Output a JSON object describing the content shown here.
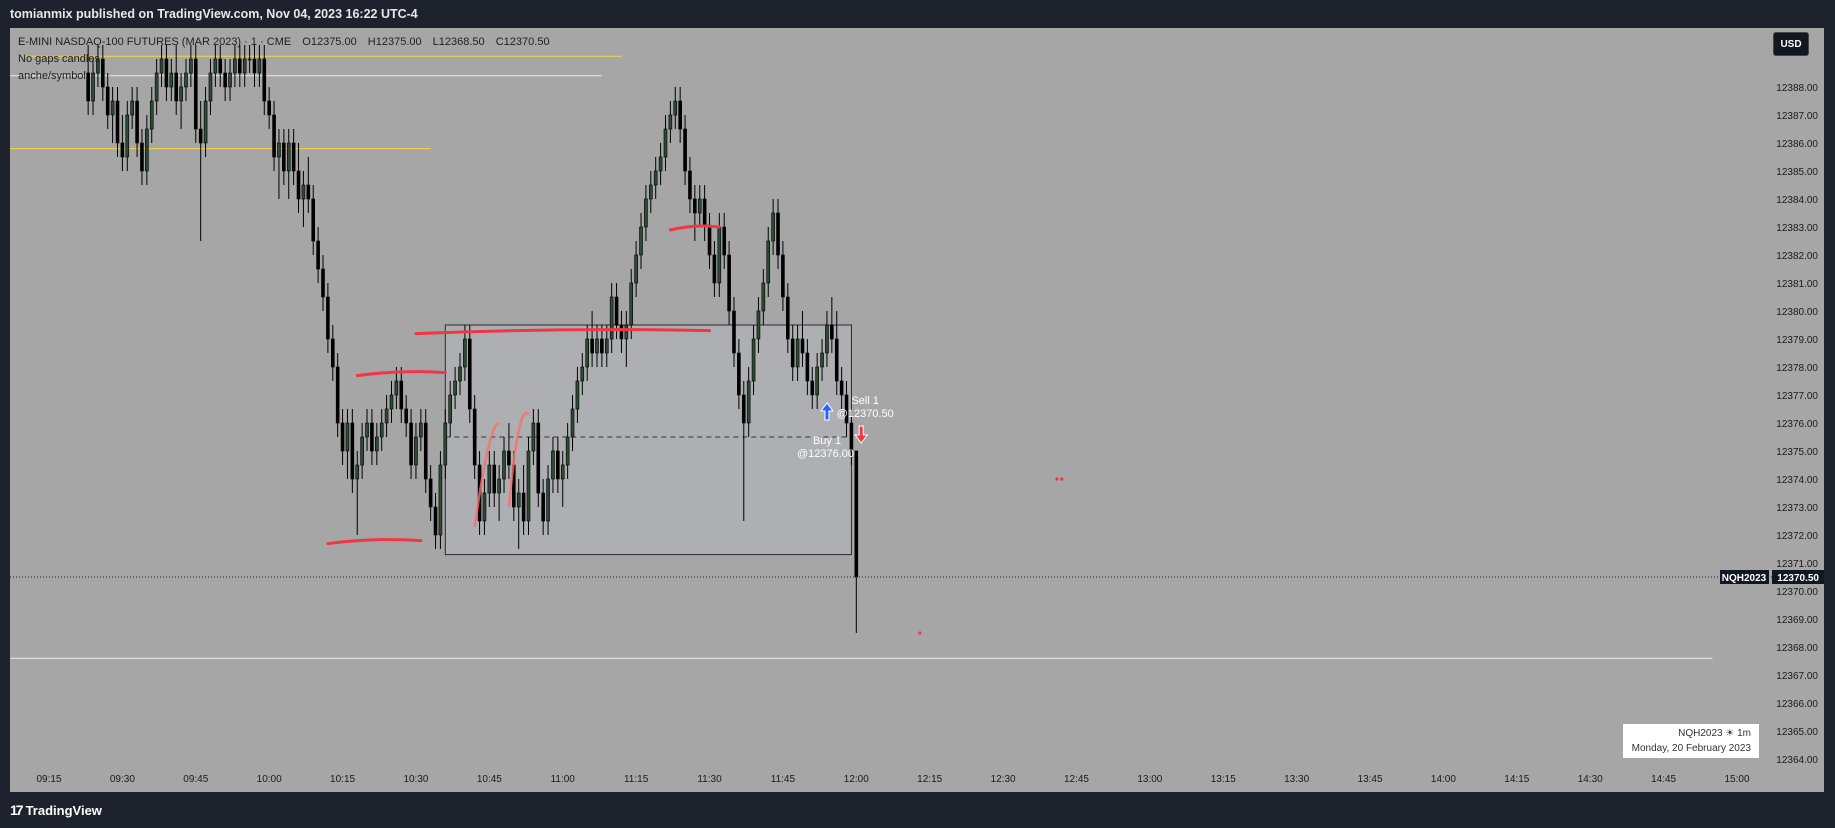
{
  "header": {
    "title": "tomianmix published on TradingView.com, Nov 04, 2023 16:22 UTC-4"
  },
  "legend": {
    "symbol": "E-MINI NASDAQ-100 FUTURES (MAR 2023) · 1 · CME",
    "open": "O12375.00",
    "high": "H12375.00",
    "low": "L12368.50",
    "close": "C12370.50",
    "indicator1": "No gaps candles",
    "indicator2": "anche/symbol"
  },
  "currency": "USD",
  "price_axis": {
    "labels": [
      "12388.00",
      "12387.00",
      "12386.00",
      "12385.00",
      "12384.00",
      "12383.00",
      "12382.00",
      "12381.00",
      "12380.00",
      "12379.00",
      "12378.00",
      "12377.00",
      "12376.00",
      "12375.00",
      "12374.00",
      "12373.00",
      "12372.00",
      "12371.00",
      "12370.00",
      "12369.00",
      "12368.00",
      "12367.00",
      "12366.00",
      "12365.00",
      "12364.00"
    ]
  },
  "time_axis": {
    "labels": [
      "09:15",
      "09:30",
      "09:45",
      "10:00",
      "10:15",
      "10:30",
      "10:45",
      "11:00",
      "11:15",
      "11:30",
      "11:45",
      "12:00",
      "12:15",
      "12:30",
      "12:45",
      "13:00",
      "13:15",
      "13:30",
      "13:45",
      "14:00",
      "14:15",
      "14:30",
      "14:45",
      "15:00"
    ]
  },
  "last_price": {
    "symbol_tag": "NQH2023",
    "value": "12370.50"
  },
  "trade_labels": {
    "buy_line1": "Buy 1",
    "buy_line2": "@12376.00",
    "sell_line1": "Sell 1",
    "sell_line2": "@12370.50"
  },
  "info_box": {
    "line1": "NQH2023 ☀ 1m",
    "line2": "Monday, 20 February 2023"
  },
  "footer": {
    "logo_text": "TradingView"
  },
  "colors": {
    "bg": "#a6a6a6",
    "frame": "#1e222d",
    "bull": "#2e4a35",
    "bear": "#000000",
    "red_line": "#f23645",
    "yellow_line": "#f5d742",
    "buy_arrow": "#2962ff",
    "sell_arrow": "#f23645"
  },
  "chart_data": {
    "type": "candlestick",
    "symbol": "NQH2023",
    "interval": "1m",
    "ylim": [
      12363.5,
      12389.5
    ],
    "x_range": [
      "09:10",
      "15:05"
    ],
    "candles": [
      [
        "09:23",
        12388.5,
        12389.5,
        12387.0,
        12387.5
      ],
      [
        "09:24",
        12387.5,
        12389.0,
        12387.0,
        12388.5
      ],
      [
        "09:25",
        12388.5,
        12389.5,
        12388.0,
        12389.0
      ],
      [
        "09:26",
        12389.0,
        12389.5,
        12387.5,
        12388.0
      ],
      [
        "09:27",
        12388.0,
        12388.5,
        12386.5,
        12387.0
      ],
      [
        "09:28",
        12387.0,
        12388.0,
        12386.0,
        12387.5
      ],
      [
        "09:29",
        12387.5,
        12388.0,
        12385.5,
        12386.0
      ],
      [
        "09:30",
        12386.0,
        12387.0,
        12385.0,
        12385.5
      ],
      [
        "09:31",
        12385.5,
        12387.5,
        12385.0,
        12387.0
      ],
      [
        "09:32",
        12387.0,
        12388.0,
        12386.5,
        12387.5
      ],
      [
        "09:33",
        12387.5,
        12388.0,
        12385.5,
        12386.0
      ],
      [
        "09:34",
        12386.0,
        12386.5,
        12384.5,
        12385.0
      ],
      [
        "09:35",
        12385.0,
        12387.0,
        12384.5,
        12386.5
      ],
      [
        "09:36",
        12386.5,
        12388.0,
        12386.0,
        12387.5
      ],
      [
        "09:37",
        12387.5,
        12389.0,
        12387.0,
        12388.5
      ],
      [
        "09:38",
        12388.5,
        12389.5,
        12388.0,
        12389.0
      ],
      [
        "09:39",
        12389.0,
        12389.5,
        12387.5,
        12388.0
      ],
      [
        "09:40",
        12388.0,
        12389.0,
        12387.5,
        12388.5
      ],
      [
        "09:41",
        12388.5,
        12389.5,
        12387.0,
        12387.5
      ],
      [
        "09:42",
        12387.5,
        12388.5,
        12386.5,
        12388.0
      ],
      [
        "09:43",
        12388.0,
        12389.0,
        12387.5,
        12388.5
      ],
      [
        "09:44",
        12388.5,
        12389.5,
        12388.0,
        12389.0
      ],
      [
        "09:45",
        12389.0,
        12389.5,
        12386.0,
        12386.5
      ],
      [
        "09:46",
        12386.5,
        12387.5,
        12382.5,
        12386.0
      ],
      [
        "09:47",
        12386.0,
        12388.0,
        12385.5,
        12387.5
      ],
      [
        "09:48",
        12387.5,
        12389.0,
        12387.0,
        12388.5
      ],
      [
        "09:49",
        12388.5,
        12389.5,
        12388.0,
        12389.0
      ],
      [
        "09:50",
        12389.0,
        12389.5,
        12388.0,
        12388.5
      ],
      [
        "09:51",
        12388.5,
        12389.0,
        12387.5,
        12388.0
      ],
      [
        "09:52",
        12388.0,
        12389.0,
        12387.5,
        12388.5
      ],
      [
        "09:53",
        12388.5,
        12389.5,
        12388.0,
        12389.0
      ],
      [
        "09:54",
        12389.0,
        12389.5,
        12388.0,
        12388.5
      ],
      [
        "09:55",
        12388.5,
        12389.5,
        12388.0,
        12389.0
      ],
      [
        "09:56",
        12389.0,
        12389.5,
        12388.5,
        12389.0
      ],
      [
        "09:57",
        12389.0,
        12389.5,
        12388.0,
        12388.5
      ],
      [
        "09:58",
        12388.5,
        12389.5,
        12388.0,
        12389.0
      ],
      [
        "09:59",
        12389.0,
        12389.5,
        12387.0,
        12387.5
      ],
      [
        "10:00",
        12387.5,
        12388.0,
        12386.5,
        12387.0
      ],
      [
        "10:01",
        12387.0,
        12387.5,
        12385.0,
        12385.5
      ],
      [
        "10:02",
        12385.5,
        12386.5,
        12384.0,
        12386.0
      ],
      [
        "10:03",
        12386.0,
        12386.5,
        12384.5,
        12385.0
      ],
      [
        "10:04",
        12385.0,
        12386.5,
        12384.0,
        12386.0
      ],
      [
        "10:05",
        12386.0,
        12386.5,
        12384.5,
        12385.0
      ],
      [
        "10:06",
        12385.0,
        12386.0,
        12383.5,
        12384.0
      ],
      [
        "10:07",
        12384.0,
        12385.0,
        12383.0,
        12384.5
      ],
      [
        "10:08",
        12384.5,
        12385.5,
        12383.5,
        12384.0
      ],
      [
        "10:09",
        12384.0,
        12384.5,
        12382.0,
        12382.5
      ],
      [
        "10:10",
        12382.5,
        12383.0,
        12381.0,
        12381.5
      ],
      [
        "10:11",
        12381.5,
        12382.0,
        12380.0,
        12380.5
      ],
      [
        "10:12",
        12380.5,
        12381.0,
        12378.5,
        12379.0
      ],
      [
        "10:13",
        12379.0,
        12379.5,
        12377.5,
        12378.0
      ],
      [
        "10:14",
        12378.0,
        12378.5,
        12375.5,
        12376.0
      ],
      [
        "10:15",
        12376.0,
        12376.5,
        12374.5,
        12375.0
      ],
      [
        "10:16",
        12375.0,
        12376.5,
        12374.0,
        12376.0
      ],
      [
        "10:17",
        12376.0,
        12376.5,
        12373.5,
        12374.0
      ],
      [
        "10:18",
        12374.0,
        12375.0,
        12372.0,
        12374.5
      ],
      [
        "10:19",
        12374.5,
        12376.0,
        12374.0,
        12375.5
      ],
      [
        "10:20",
        12375.5,
        12376.5,
        12375.0,
        12376.0
      ],
      [
        "10:21",
        12376.0,
        12376.5,
        12374.5,
        12375.0
      ],
      [
        "10:22",
        12375.0,
        12376.0,
        12374.5,
        12375.5
      ],
      [
        "10:23",
        12375.5,
        12376.5,
        12375.0,
        12376.0
      ],
      [
        "10:24",
        12376.0,
        12377.0,
        12375.5,
        12376.5
      ],
      [
        "10:25",
        12376.5,
        12377.5,
        12376.0,
        12377.0
      ],
      [
        "10:26",
        12377.0,
        12378.0,
        12376.5,
        12377.5
      ],
      [
        "10:27",
        12377.5,
        12378.0,
        12376.0,
        12376.5
      ],
      [
        "10:28",
        12376.5,
        12377.0,
        12375.5,
        12376.0
      ],
      [
        "10:29",
        12376.0,
        12376.5,
        12374.0,
        12374.5
      ],
      [
        "10:30",
        12374.5,
        12376.0,
        12374.0,
        12375.5
      ],
      [
        "10:31",
        12375.5,
        12376.5,
        12375.0,
        12376.0
      ],
      [
        "10:32",
        12376.0,
        12376.5,
        12373.5,
        12374.0
      ],
      [
        "10:33",
        12374.0,
        12374.5,
        12372.5,
        12373.0
      ],
      [
        "10:34",
        12373.0,
        12373.5,
        12371.5,
        12372.0
      ],
      [
        "10:35",
        12372.0,
        12375.0,
        12371.5,
        12374.5
      ],
      [
        "10:36",
        12374.5,
        12376.5,
        12374.0,
        12376.0
      ],
      [
        "10:37",
        12376.0,
        12377.5,
        12375.5,
        12377.0
      ],
      [
        "10:38",
        12377.0,
        12378.0,
        12376.5,
        12377.5
      ],
      [
        "10:39",
        12377.5,
        12378.5,
        12377.0,
        12378.0
      ],
      [
        "10:40",
        12378.0,
        12379.5,
        12377.5,
        12379.0
      ],
      [
        "10:41",
        12379.0,
        12379.5,
        12376.0,
        12376.5
      ],
      [
        "10:42",
        12376.5,
        12377.0,
        12374.0,
        12374.5
      ],
      [
        "10:43",
        12374.5,
        12375.0,
        12372.0,
        12372.5
      ],
      [
        "10:44",
        12372.5,
        12374.0,
        12372.0,
        12373.5
      ],
      [
        "10:45",
        12373.5,
        12375.0,
        12373.0,
        12374.5
      ],
      [
        "10:46",
        12374.5,
        12375.0,
        12373.0,
        12373.5
      ],
      [
        "10:47",
        12373.5,
        12374.5,
        12372.5,
        12374.0
      ],
      [
        "10:48",
        12374.0,
        12375.5,
        12373.5,
        12375.0
      ],
      [
        "10:49",
        12375.0,
        12376.0,
        12374.0,
        12374.5
      ],
      [
        "10:50",
        12374.5,
        12375.0,
        12372.5,
        12373.0
      ],
      [
        "10:51",
        12373.0,
        12374.0,
        12371.5,
        12373.5
      ],
      [
        "10:52",
        12373.5,
        12374.5,
        12372.0,
        12372.5
      ],
      [
        "10:53",
        12372.5,
        12375.5,
        12372.0,
        12375.0
      ],
      [
        "10:54",
        12375.0,
        12376.5,
        12374.5,
        12376.0
      ],
      [
        "10:55",
        12376.0,
        12376.5,
        12373.0,
        12373.5
      ],
      [
        "10:56",
        12373.5,
        12374.0,
        12372.0,
        12372.5
      ],
      [
        "10:57",
        12372.5,
        12374.5,
        12372.0,
        12374.0
      ],
      [
        "10:58",
        12374.0,
        12375.5,
        12373.5,
        12375.0
      ],
      [
        "10:59",
        12375.0,
        12375.5,
        12373.5,
        12374.0
      ],
      [
        "11:00",
        12374.0,
        12375.0,
        12373.0,
        12374.5
      ],
      [
        "11:01",
        12374.5,
        12376.0,
        12374.0,
        12375.5
      ],
      [
        "11:02",
        12375.5,
        12377.0,
        12375.0,
        12376.5
      ],
      [
        "11:03",
        12376.5,
        12378.0,
        12376.0,
        12377.5
      ],
      [
        "11:04",
        12377.5,
        12378.5,
        12377.0,
        12378.0
      ],
      [
        "11:05",
        12378.0,
        12379.5,
        12377.5,
        12379.0
      ],
      [
        "11:06",
        12379.0,
        12380.0,
        12378.0,
        12378.5
      ],
      [
        "11:07",
        12378.5,
        12379.5,
        12378.0,
        12379.0
      ],
      [
        "11:08",
        12379.0,
        12379.5,
        12378.0,
        12378.5
      ],
      [
        "11:09",
        12378.5,
        12379.5,
        12378.0,
        12379.0
      ],
      [
        "11:10",
        12379.0,
        12381.0,
        12378.5,
        12380.5
      ],
      [
        "11:11",
        12380.5,
        12381.0,
        12379.0,
        12379.5
      ],
      [
        "11:12",
        12379.5,
        12380.0,
        12378.5,
        12379.0
      ],
      [
        "11:13",
        12379.0,
        12380.0,
        12378.0,
        12379.5
      ],
      [
        "11:14",
        12379.5,
        12381.5,
        12379.0,
        12381.0
      ],
      [
        "11:15",
        12381.0,
        12382.5,
        12380.5,
        12382.0
      ],
      [
        "11:16",
        12382.0,
        12383.5,
        12381.5,
        12383.0
      ],
      [
        "11:17",
        12383.0,
        12384.5,
        12382.5,
        12384.0
      ],
      [
        "11:18",
        12384.0,
        12385.0,
        12383.5,
        12384.5
      ],
      [
        "11:19",
        12384.5,
        12385.5,
        12384.0,
        12385.0
      ],
      [
        "11:20",
        12385.0,
        12386.0,
        12384.5,
        12385.5
      ],
      [
        "11:21",
        12385.5,
        12387.0,
        12385.0,
        12386.5
      ],
      [
        "11:22",
        12386.5,
        12387.5,
        12386.0,
        12387.0
      ],
      [
        "11:23",
        12387.0,
        12388.0,
        12386.5,
        12387.5
      ],
      [
        "11:24",
        12387.5,
        12388.0,
        12386.0,
        12386.5
      ],
      [
        "11:25",
        12386.5,
        12387.0,
        12384.5,
        12385.0
      ],
      [
        "11:26",
        12385.0,
        12385.5,
        12383.5,
        12384.0
      ],
      [
        "11:27",
        12384.0,
        12384.5,
        12382.5,
        12383.5
      ],
      [
        "11:28",
        12383.5,
        12384.5,
        12383.0,
        12384.0
      ],
      [
        "11:29",
        12384.0,
        12384.5,
        12382.5,
        12383.0
      ],
      [
        "11:30",
        12383.0,
        12383.5,
        12381.5,
        12382.0
      ],
      [
        "11:31",
        12382.0,
        12382.5,
        12380.5,
        12381.0
      ],
      [
        "11:32",
        12381.0,
        12383.5,
        12380.5,
        12383.0
      ],
      [
        "11:33",
        12383.0,
        12383.5,
        12381.5,
        12382.0
      ],
      [
        "11:34",
        12382.0,
        12382.5,
        12379.5,
        12380.0
      ],
      [
        "11:35",
        12380.0,
        12380.5,
        12378.0,
        12378.5
      ],
      [
        "11:36",
        12378.5,
        12379.0,
        12376.5,
        12377.0
      ],
      [
        "11:37",
        12377.0,
        12377.5,
        12372.5,
        12376.0
      ],
      [
        "11:38",
        12376.0,
        12378.0,
        12375.5,
        12377.5
      ],
      [
        "11:39",
        12377.5,
        12379.5,
        12377.0,
        12379.0
      ],
      [
        "11:40",
        12379.0,
        12380.5,
        12378.5,
        12380.0
      ],
      [
        "11:41",
        12380.0,
        12381.5,
        12379.5,
        12381.0
      ],
      [
        "11:42",
        12381.0,
        12383.0,
        12380.5,
        12382.5
      ],
      [
        "11:43",
        12382.5,
        12384.0,
        12382.0,
        12383.5
      ],
      [
        "11:44",
        12383.5,
        12384.0,
        12381.5,
        12382.0
      ],
      [
        "11:45",
        12382.0,
        12382.5,
        12380.0,
        12380.5
      ],
      [
        "11:46",
        12380.5,
        12381.0,
        12378.5,
        12379.0
      ],
      [
        "11:47",
        12379.0,
        12379.5,
        12377.5,
        12378.0
      ],
      [
        "11:48",
        12378.0,
        12379.5,
        12377.5,
        12379.0
      ],
      [
        "11:49",
        12379.0,
        12380.0,
        12378.0,
        12378.5
      ],
      [
        "11:50",
        12378.5,
        12379.0,
        12377.0,
        12377.5
      ],
      [
        "11:51",
        12377.5,
        12378.0,
        12376.5,
        12377.0
      ],
      [
        "11:52",
        12377.0,
        12378.5,
        12376.5,
        12378.0
      ],
      [
        "11:53",
        12378.0,
        12379.0,
        12377.5,
        12378.5
      ],
      [
        "11:54",
        12378.5,
        12380.0,
        12378.0,
        12379.5
      ],
      [
        "11:55",
        12379.5,
        12380.5,
        12378.5,
        12379.0
      ],
      [
        "11:56",
        12379.0,
        12380.0,
        12377.0,
        12377.5
      ],
      [
        "11:57",
        12377.5,
        12378.0,
        12376.5,
        12377.0
      ],
      [
        "11:58",
        12377.0,
        12377.5,
        12375.5,
        12376.0
      ],
      [
        "11:59",
        12376.0,
        12376.5,
        12374.5,
        12375.0
      ],
      [
        "12:00",
        12375.0,
        12375.0,
        12368.5,
        12370.5
      ]
    ],
    "drawings": {
      "rectangle": {
        "time_start": "10:36",
        "time_end": "11:59",
        "price_top": 12379.5,
        "price_bottom": 12371.3,
        "mid_price": 12375.5
      },
      "yellow_lines": [
        {
          "price": 12389.1,
          "time_start": "09:10",
          "time_end": "11:12"
        },
        {
          "price": 12385.8,
          "time_end": "10:33"
        }
      ],
      "white_lines": [
        {
          "price": 12388.4,
          "time_end": "11:08"
        },
        {
          "price": 12367.6,
          "time_end": "14:55"
        }
      ],
      "red_lines": [
        {
          "price": 12379.3,
          "time_start": "10:30",
          "time_end": "11:30"
        },
        {
          "price": 12383.0,
          "time_start": "11:22",
          "time_end": "11:32"
        },
        {
          "price": 12377.8,
          "time_start": "10:18",
          "time_end": "10:36"
        },
        {
          "price": 12371.8,
          "time_start": "10:12",
          "time_end": "10:31"
        }
      ],
      "dotted_last_price": 12370.5
    },
    "trades": [
      {
        "side": "buy",
        "time": "11:54",
        "price": 12376.0
      },
      {
        "side": "sell",
        "time": "12:01",
        "price": 12370.5
      }
    ]
  }
}
